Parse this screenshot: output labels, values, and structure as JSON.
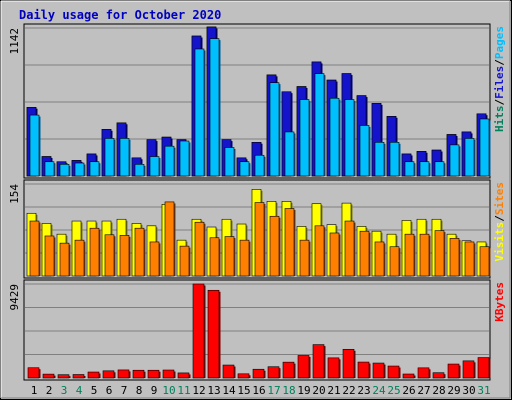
{
  "chart_data": {
    "type": "bar",
    "title": "Daily usage for October 2020",
    "categories": [
      "1",
      "2",
      "3",
      "4",
      "5",
      "6",
      "7",
      "8",
      "9",
      "10",
      "11",
      "12",
      "13",
      "14",
      "15",
      "16",
      "17",
      "18",
      "19",
      "20",
      "21",
      "22",
      "23",
      "24",
      "25",
      "26",
      "27",
      "28",
      "29",
      "30",
      "31"
    ],
    "weekend_days": [
      "3",
      "4",
      "10",
      "11",
      "17",
      "18",
      "24",
      "25",
      "31"
    ],
    "panels": [
      {
        "id": "pages_files_hits",
        "ymax_label": "1142",
        "ymax": 1142,
        "labels": [
          "Pages",
          "Files",
          "Hits"
        ],
        "label_separator": "/",
        "series": [
          {
            "name": "Hits",
            "color": "#00805c",
            "values": [
              530,
              150,
              110,
              120,
              170,
              360,
              410,
              140,
              280,
              300,
              280,
              1080,
              1150,
              280,
              140,
              260,
              780,
              650,
              690,
              880,
              740,
              790,
              620,
              560,
              460,
              170,
              190,
              200,
              320,
              340,
              480
            ]
          },
          {
            "name": "Files",
            "color": "#1414cc",
            "values": [
              530,
              150,
              110,
              120,
              170,
              360,
              410,
              140,
              280,
              300,
              280,
              1080,
              1150,
              280,
              140,
              260,
              780,
              650,
              690,
              880,
              740,
              790,
              620,
              560,
              460,
              170,
              190,
              200,
              320,
              340,
              480
            ]
          },
          {
            "name": "Pages",
            "color": "#00bfff",
            "values": [
              470,
              110,
              90,
              100,
              110,
              290,
              290,
              90,
              150,
              230,
              270,
              980,
              1060,
              220,
              110,
              160,
              720,
              340,
              590,
              790,
              600,
              590,
              390,
              260,
              260,
              110,
              110,
              110,
              240,
              290,
              440
            ]
          }
        ]
      },
      {
        "id": "sites_visits",
        "ymax_label": "154",
        "ymax": 154,
        "labels": [
          "Sites",
          "Visits"
        ],
        "label_separator": "/",
        "series": [
          {
            "name": "Visits",
            "color": "#ffff00",
            "values": [
              105,
              88,
              70,
              92,
              92,
              92,
              95,
              88,
              84,
              120,
              60,
              95,
              82,
              95,
              87,
              145,
              125,
              125,
              83,
              121,
              86,
              122,
              83,
              75,
              70,
              93,
              95,
              95,
              70,
              59,
              57
            ]
          },
          {
            "name": "Sites",
            "color": "#ff8000",
            "values": [
              92,
              67,
              55,
              60,
              80,
              69,
              68,
              80,
              57,
              124,
              50,
              90,
              64,
              66,
              60,
              123,
              100,
              113,
              60,
              84,
              72,
              92,
              75,
              57,
              49,
              70,
              70,
              76,
              63,
              57,
              49
            ]
          }
        ]
      },
      {
        "id": "kbytes",
        "ymax_label": "9429",
        "ymax": 9429,
        "labels": [
          "KBytes"
        ],
        "label_separator": "/",
        "series": [
          {
            "name": "KBytes",
            "color": "#ff0000",
            "values": [
              1030,
              390,
              330,
              350,
              600,
              720,
              810,
              780,
              780,
              800,
              510,
              9429,
              8800,
              1300,
              420,
              880,
              1130,
              1590,
              2260,
              3350,
              2020,
              2880,
              1600,
              1500,
              1200,
              400,
              1020,
              530,
              1400,
              1720,
              2050
            ]
          }
        ]
      }
    ]
  }
}
